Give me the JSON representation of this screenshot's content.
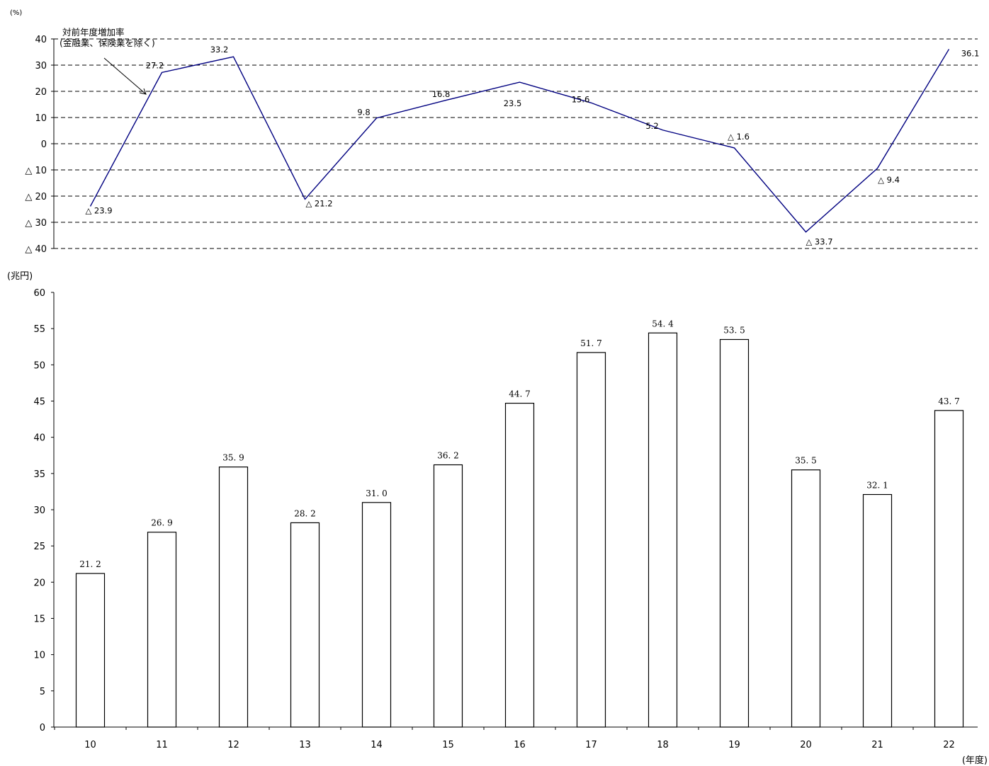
{
  "chart_data": [
    {
      "type": "line",
      "y_unit": "(%)",
      "ylim": [
        -40,
        40
      ],
      "y_ticks": [
        "40",
        "30",
        "20",
        "10",
        "0",
        "△ 10",
        "△ 20",
        "△ 30",
        "△ 40"
      ],
      "grid": "dashed horizontal",
      "annotation_lines": [
        "対前年度増加率",
        "(金融業、保険業を除く)"
      ],
      "categories": [
        "10",
        "11",
        "12",
        "13",
        "14",
        "15",
        "16",
        "17",
        "18",
        "19",
        "20",
        "21",
        "22"
      ],
      "series": [
        {
          "values": [
            -23.9,
            27.2,
            33.2,
            -21.2,
            9.8,
            16.8,
            23.5,
            15.6,
            5.2,
            -1.6,
            -33.7,
            -9.4,
            36.1
          ],
          "labels": [
            "△ 23.9",
            "27.2",
            "33.2",
            "△ 21.2",
            "9.8",
            "16.8",
            "23.5",
            "15.6",
            "5.2",
            "△ 1.6",
            "△ 33.7",
            "△ 9.4",
            "36.1"
          ],
          "color": "#000080"
        }
      ]
    },
    {
      "type": "bar",
      "y_unit": "(兆円)",
      "x_unit": "(年度)",
      "ylim": [
        0,
        60
      ],
      "y_ticks": [
        "60",
        "55",
        "50",
        "45",
        "40",
        "35",
        "30",
        "25",
        "20",
        "15",
        "10",
        "5",
        "0"
      ],
      "categories": [
        "10",
        "11",
        "12",
        "13",
        "14",
        "15",
        "16",
        "17",
        "18",
        "19",
        "20",
        "21",
        "22"
      ],
      "values": [
        21.2,
        26.9,
        35.9,
        28.2,
        31.0,
        36.2,
        44.7,
        51.7,
        54.4,
        53.5,
        35.5,
        32.1,
        43.7
      ],
      "labels": [
        "21. 2",
        "26. 9",
        "35. 9",
        "28. 2",
        "31. 0",
        "36. 2",
        "44. 7",
        "51. 7",
        "54. 4",
        "53. 5",
        "35. 5",
        "32. 1",
        "43. 7"
      ]
    }
  ]
}
